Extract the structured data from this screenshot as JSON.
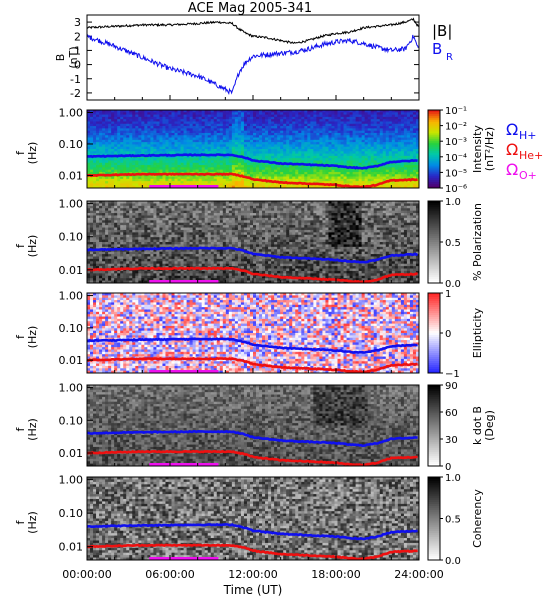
{
  "title": "ACE Mag 2005-341",
  "x_axis": {
    "label": "Time (UT)",
    "ticks": [
      "00:00:00",
      "06:00:00",
      "12:00:00",
      "18:00:00",
      "24:00:00"
    ],
    "range_hours": [
      0,
      24
    ]
  },
  "colors": {
    "hplus": "#1010ee",
    "heplus": "#ee1010",
    "oplus": "#ee10ee",
    "btotal": "#000000",
    "br": "#1010ee"
  },
  "panels": [
    {
      "id": "B",
      "ylabel_1": "B",
      "ylabel_2": "(nT)",
      "yticks": [
        "3",
        "2",
        "1",
        "0",
        "-1",
        "-2"
      ],
      "legend": [
        {
          "text": "|B|",
          "color": "#000000"
        },
        {
          "text": "B",
          "sub": "R",
          "color": "#1010ee"
        }
      ]
    },
    {
      "id": "intensity",
      "ylabel_1": "f",
      "ylabel_2": "(Hz)",
      "yticks": [
        "1.00",
        "0.10",
        "0.01"
      ],
      "colorbar_label_1": "Intensity",
      "colorbar_label_2": "(nT²/Hz)",
      "colorbar_ticks": [
        "10⁻¹",
        "10⁻²",
        "10⁻³",
        "10⁻⁴",
        "10⁻⁵",
        "10⁻⁶"
      ],
      "legend": [
        {
          "sym": "Ω",
          "sub": "H+",
          "color": "#1010ee"
        },
        {
          "sym": "Ω",
          "sub": "He+",
          "color": "#ee1010"
        },
        {
          "sym": "Ω",
          "sub": "O+",
          "color": "#ee10ee"
        }
      ]
    },
    {
      "id": "polarization",
      "ylabel_1": "f",
      "ylabel_2": "(Hz)",
      "yticks": [
        "1.00",
        "0.10",
        "0.01"
      ],
      "colorbar_label_1": "% Polarization",
      "colorbar_label_2": "",
      "colorbar_ticks": [
        "1.0",
        "0.5",
        "0.0"
      ]
    },
    {
      "id": "ellipticity",
      "ylabel_1": "f",
      "ylabel_2": "(Hz)",
      "yticks": [
        "1.00",
        "0.10",
        "0.01"
      ],
      "colorbar_label_1": "Ellipticity",
      "colorbar_label_2": "",
      "colorbar_ticks": [
        "1",
        "0",
        "−1"
      ]
    },
    {
      "id": "kdotb",
      "ylabel_1": "f",
      "ylabel_2": "(Hz)",
      "yticks": [
        "1.00",
        "0.10",
        "0.01"
      ],
      "colorbar_label_1": "k dot B",
      "colorbar_label_2": "(Deg)",
      "colorbar_ticks": [
        "90",
        "60",
        "30",
        "0"
      ]
    },
    {
      "id": "coherency",
      "ylabel_1": "f",
      "ylabel_2": "(Hz)",
      "yticks": [
        "1.00",
        "0.10",
        "0.01"
      ],
      "colorbar_label_1": "Coherency",
      "colorbar_label_2": "",
      "colorbar_ticks": [
        "1.0",
        "0.5",
        "0.0"
      ]
    }
  ],
  "chart_data": [
    {
      "type": "line",
      "title": "ACE Mag 2005-341",
      "ylabel": "B (nT)",
      "ylim": [
        -2.5,
        3.5
      ],
      "x_hours": [
        0,
        2,
        4,
        6,
        8,
        9.5,
        10.5,
        11,
        11.5,
        12,
        13,
        14,
        15,
        16,
        17,
        18,
        19,
        20,
        21,
        22,
        23,
        23.6,
        24
      ],
      "series": [
        {
          "name": "|B|",
          "values": [
            2.6,
            2.7,
            2.8,
            2.8,
            2.9,
            3.0,
            2.9,
            2.5,
            2.2,
            2.0,
            1.9,
            1.7,
            1.5,
            1.7,
            2.0,
            2.2,
            2.3,
            2.6,
            2.7,
            2.8,
            3.0,
            3.2,
            2.6
          ]
        },
        {
          "name": "B_R",
          "values": [
            2.0,
            1.3,
            0.5,
            -0.3,
            -0.8,
            -1.5,
            -2.0,
            -0.5,
            0.2,
            0.6,
            0.7,
            0.8,
            0.9,
            1.1,
            1.4,
            1.6,
            1.7,
            1.5,
            1.2,
            1.0,
            1.1,
            2.0,
            1.0
          ]
        }
      ]
    },
    {
      "type": "heatmap",
      "xlabel": "Time (UT)",
      "ylabel": "f (Hz)",
      "ylim": [
        0.004,
        1.0
      ],
      "log_y": true,
      "x_hours": [
        0,
        4,
        8,
        10.5,
        11.5,
        12,
        14,
        16,
        18,
        19,
        20,
        21,
        22,
        24
      ],
      "lines": [
        {
          "name": "Ω_H+",
          "values": [
            0.04,
            0.043,
            0.045,
            0.045,
            0.036,
            0.03,
            0.024,
            0.022,
            0.02,
            0.018,
            0.017,
            0.02,
            0.027,
            0.03
          ]
        },
        {
          "name": "Ω_He+",
          "values": [
            0.01,
            0.011,
            0.011,
            0.011,
            0.009,
            0.0075,
            0.006,
            0.0055,
            0.005,
            0.0045,
            0.0043,
            0.005,
            0.007,
            0.0075
          ]
        },
        {
          "name": "Ω_O+",
          "values": [
            0.0025,
            0.0027,
            0.0028,
            0.0028,
            0.0023,
            0.0019,
            0.0015,
            0.0014,
            0.0013,
            0.0011,
            0.0011,
            0.0013,
            0.0017,
            0.0019
          ]
        }
      ],
      "colorbar": {
        "label": "Intensity (nT²/Hz)",
        "range_log10": [
          -6,
          -1
        ]
      },
      "magenta_segment_hours": [
        4.5,
        9.5
      ]
    },
    {
      "type": "heatmap",
      "ylabel": "f (Hz)",
      "ylim": [
        0.004,
        1.0
      ],
      "log_y": true,
      "colorbar": {
        "label": "% Polarization",
        "range": [
          0,
          1
        ]
      }
    },
    {
      "type": "heatmap",
      "ylabel": "f (Hz)",
      "ylim": [
        0.004,
        1.0
      ],
      "log_y": true,
      "colorbar": {
        "label": "Ellipticity",
        "range": [
          -1,
          1
        ]
      }
    },
    {
      "type": "heatmap",
      "ylabel": "f (Hz)",
      "ylim": [
        0.004,
        1.0
      ],
      "log_y": true,
      "colorbar": {
        "label": "k dot B (Deg)",
        "range": [
          0,
          90
        ]
      }
    },
    {
      "type": "heatmap",
      "ylabel": "f (Hz)",
      "ylim": [
        0.004,
        1.0
      ],
      "log_y": true,
      "colorbar": {
        "label": "Coherency",
        "range": [
          0,
          1
        ]
      }
    }
  ]
}
